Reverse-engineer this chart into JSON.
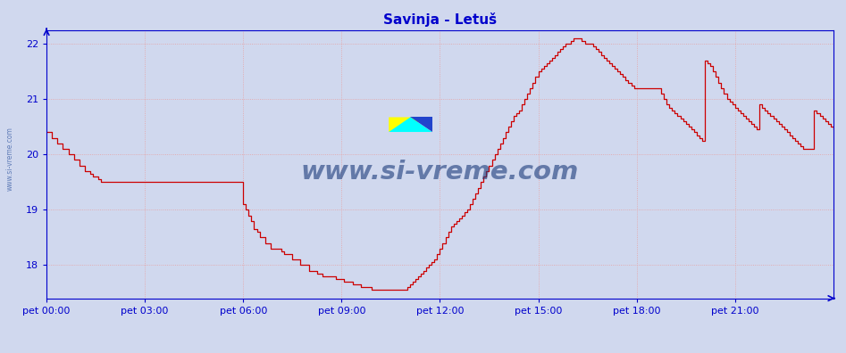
{
  "title": "Savinja - Letuš",
  "title_color": "#0000cc",
  "background_color": "#d0d8ee",
  "plot_bg_color": "#d0d8ee",
  "grid_color": "#e8a0a0",
  "axis_color": "#0000cc",
  "tick_color": "#0000cc",
  "watermark_text": "www.si-vreme.com",
  "watermark_color": "#1a3a7a",
  "ylim_min": 17.4,
  "ylim_max": 22.25,
  "yticks": [
    18,
    19,
    20,
    21,
    22
  ],
  "xlabel_labels": [
    "pet 00:00",
    "pet 03:00",
    "pet 06:00",
    "pet 09:00",
    "pet 12:00",
    "pet 15:00",
    "pet 18:00",
    "pet 21:00"
  ],
  "total_points": 288,
  "temp_color": "#cc0000",
  "pretok_color": "#008800",
  "temp_data": [
    20.4,
    20.4,
    20.3,
    20.3,
    20.2,
    20.2,
    20.1,
    20.1,
    20.0,
    20.0,
    19.9,
    19.9,
    19.8,
    19.8,
    19.7,
    19.7,
    19.65,
    19.6,
    19.6,
    19.55,
    19.5,
    19.5,
    19.5,
    19.5,
    19.5,
    19.5,
    19.5,
    19.5,
    19.5,
    19.5,
    19.5,
    19.5,
    19.5,
    19.5,
    19.5,
    19.5,
    19.5,
    19.5,
    19.5,
    19.5,
    19.5,
    19.5,
    19.5,
    19.5,
    19.5,
    19.5,
    19.5,
    19.5,
    19.5,
    19.5,
    19.5,
    19.5,
    19.5,
    19.5,
    19.5,
    19.5,
    19.5,
    19.5,
    19.5,
    19.5,
    19.5,
    19.5,
    19.5,
    19.5,
    19.5,
    19.5,
    19.5,
    19.5,
    19.5,
    19.5,
    19.5,
    19.5,
    19.1,
    19.0,
    18.9,
    18.8,
    18.65,
    18.6,
    18.5,
    18.5,
    18.4,
    18.4,
    18.3,
    18.3,
    18.3,
    18.3,
    18.25,
    18.2,
    18.2,
    18.2,
    18.1,
    18.1,
    18.1,
    18.0,
    18.0,
    18.0,
    17.9,
    17.9,
    17.9,
    17.85,
    17.85,
    17.8,
    17.8,
    17.8,
    17.8,
    17.8,
    17.75,
    17.75,
    17.75,
    17.7,
    17.7,
    17.7,
    17.65,
    17.65,
    17.65,
    17.6,
    17.6,
    17.6,
    17.6,
    17.55,
    17.55,
    17.55,
    17.55,
    17.55,
    17.55,
    17.55,
    17.55,
    17.55,
    17.55,
    17.55,
    17.55,
    17.55,
    17.6,
    17.65,
    17.7,
    17.75,
    17.8,
    17.85,
    17.9,
    17.95,
    18.0,
    18.05,
    18.1,
    18.2,
    18.3,
    18.4,
    18.5,
    18.6,
    18.7,
    18.75,
    18.8,
    18.85,
    18.9,
    18.95,
    19.0,
    19.1,
    19.2,
    19.3,
    19.4,
    19.5,
    19.6,
    19.7,
    19.8,
    19.9,
    20.0,
    20.1,
    20.2,
    20.3,
    20.4,
    20.5,
    20.6,
    20.7,
    20.75,
    20.8,
    20.9,
    21.0,
    21.1,
    21.2,
    21.3,
    21.4,
    21.5,
    21.55,
    21.6,
    21.65,
    21.7,
    21.75,
    21.8,
    21.85,
    21.9,
    21.95,
    22.0,
    22.0,
    22.05,
    22.1,
    22.1,
    22.1,
    22.05,
    22.0,
    22.0,
    22.0,
    21.95,
    21.9,
    21.85,
    21.8,
    21.75,
    21.7,
    21.65,
    21.6,
    21.55,
    21.5,
    21.45,
    21.4,
    21.35,
    21.3,
    21.25,
    21.2,
    21.2,
    21.2,
    21.2,
    21.2,
    21.2,
    21.2,
    21.2,
    21.2,
    21.2,
    21.1,
    21.0,
    20.9,
    20.85,
    20.8,
    20.75,
    20.7,
    20.65,
    20.6,
    20.55,
    20.5,
    20.45,
    20.4,
    20.35,
    20.3,
    20.25,
    21.7,
    21.65,
    21.6,
    21.5,
    21.4,
    21.3,
    21.2,
    21.1,
    21.0,
    20.95,
    20.9,
    20.85,
    20.8,
    20.75,
    20.7,
    20.65,
    20.6,
    20.55,
    20.5,
    20.45,
    20.9,
    20.85,
    20.8,
    20.75,
    20.7,
    20.65,
    20.6,
    20.55,
    20.5,
    20.45,
    20.4,
    20.35,
    20.3,
    20.25,
    20.2,
    20.15,
    20.1,
    20.1,
    20.1,
    20.1,
    20.8,
    20.75,
    20.7,
    20.65,
    20.6,
    20.55,
    20.5,
    20.45,
    20.8
  ]
}
